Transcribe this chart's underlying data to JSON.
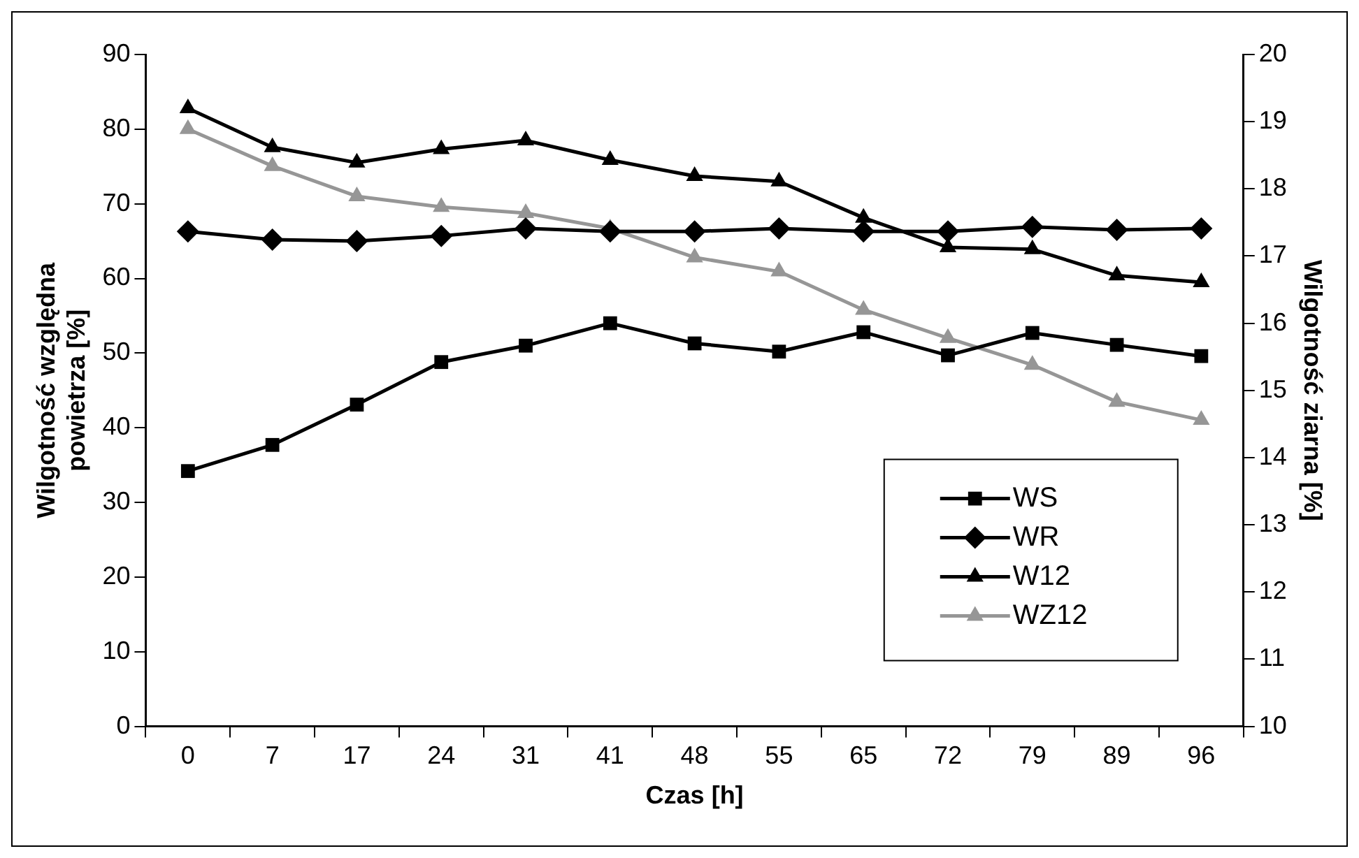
{
  "chart_data": {
    "type": "line",
    "xlabel": "Czas [h]",
    "ylabel": "Wilgotność względna powietrza [%]",
    "y2label": "Wilgotność ziarna [%]",
    "categories": [
      "0",
      "7",
      "17",
      "24",
      "31",
      "41",
      "48",
      "55",
      "65",
      "72",
      "79",
      "89",
      "96"
    ],
    "series": [
      {
        "name": "WS",
        "color": "#000000",
        "marker": "square",
        "values": [
          34.2,
          37.7,
          43.1,
          48.8,
          51.0,
          54.0,
          51.3,
          50.2,
          52.8,
          49.7,
          52.7,
          51.1,
          49.6
        ]
      },
      {
        "name": "WR",
        "color": "#000000",
        "marker": "diamond",
        "values": [
          66.3,
          65.2,
          65.0,
          65.7,
          66.7,
          66.3,
          66.3,
          66.7,
          66.3,
          66.3,
          66.9,
          66.5,
          66.7
        ]
      },
      {
        "name": "W12",
        "color": "#000000",
        "marker": "triangle",
        "axis": "y2",
        "values": [
          19.2,
          18.62,
          18.39,
          18.59,
          18.72,
          18.43,
          18.19,
          18.11,
          17.57,
          17.13,
          17.1,
          16.71,
          16.61
        ]
      },
      {
        "name": "WZ12",
        "color": "#969696",
        "marker": "triangle",
        "axis": "y2",
        "values": [
          18.89,
          18.34,
          17.89,
          17.73,
          17.64,
          17.41,
          16.98,
          16.77,
          16.2,
          15.78,
          15.38,
          14.83,
          14.56
        ]
      }
    ],
    "ylim": [
      0,
      90
    ],
    "yticks": [
      0,
      10,
      20,
      30,
      40,
      50,
      60,
      70,
      80,
      90
    ],
    "y2lim": [
      10,
      20
    ],
    "y2ticks": [
      10,
      11,
      12,
      13,
      14,
      15,
      16,
      17,
      18,
      19,
      20
    ],
    "grid": false,
    "legend": "bottom right",
    "line_style": "solid"
  }
}
